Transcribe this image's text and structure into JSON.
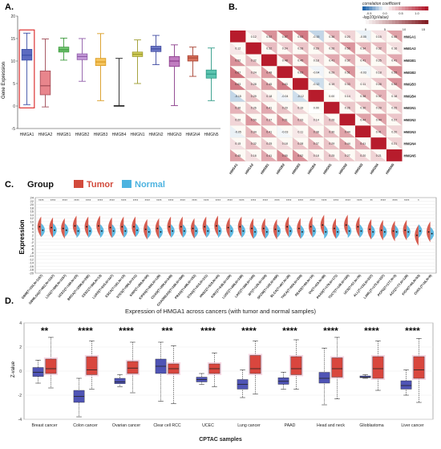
{
  "chart_data": [
    {
      "panel": "A.",
      "type": "box",
      "ylabel": "Gene Expression",
      "ylim": [
        -5,
        20
      ],
      "yticks": [
        -5,
        0,
        5,
        10,
        15,
        20
      ],
      "categories": [
        "HMGA1",
        "HMGA2",
        "HMGB1",
        "HMGB2",
        "HMGB3",
        "HMGB4",
        "HMGN1",
        "HMGN2",
        "HMGN3",
        "HMGN4",
        "HMGN5"
      ],
      "boxes": [
        {
          "min": 0.3,
          "q1": 10.2,
          "median": 11.3,
          "q3": 12.6,
          "max": 16.2,
          "color": "#3b4fa8",
          "fill": "#5c6bc0"
        },
        {
          "min": -0.2,
          "q1": 2.5,
          "median": 4.5,
          "q3": 7.8,
          "max": 14.9,
          "color": "#a04a56",
          "fill": "#e8858c"
        },
        {
          "min": 10.2,
          "q1": 12.0,
          "median": 12.5,
          "q3": 13.1,
          "max": 15.1,
          "color": "#3c9a3c",
          "fill": "#6fc36f"
        },
        {
          "min": 5.5,
          "q1": 10.3,
          "median": 11.0,
          "q3": 11.6,
          "max": 15.0,
          "color": "#8e5aa8",
          "fill": "#c49ad8"
        },
        {
          "min": 1.2,
          "q1": 9.0,
          "median": 9.8,
          "q3": 10.6,
          "max": 16.1,
          "color": "#d99a1e",
          "fill": "#f5c45e"
        },
        {
          "min": 0.0,
          "q1": 0.0,
          "median": 0.0,
          "q3": 0.1,
          "max": 10.6,
          "color": "#222222",
          "fill": "#444444"
        },
        {
          "min": 5.0,
          "q1": 11.0,
          "median": 11.5,
          "q3": 12.0,
          "max": 14.7,
          "color": "#9c9a2c",
          "fill": "#cfcb59"
        },
        {
          "min": 9.2,
          "q1": 12.1,
          "median": 12.7,
          "q3": 13.3,
          "max": 15.7,
          "color": "#3f4aa0",
          "fill": "#6a76c4"
        },
        {
          "min": 0.1,
          "q1": 8.8,
          "median": 10.0,
          "q3": 11.0,
          "max": 13.6,
          "color": "#8a3c8a",
          "fill": "#c07cc0"
        },
        {
          "min": 6.6,
          "q1": 10.0,
          "median": 10.7,
          "q3": 11.2,
          "max": 13.1,
          "color": "#a84232",
          "fill": "#d8735d"
        },
        {
          "min": 1.2,
          "q1": 6.2,
          "median": 7.1,
          "q3": 8.0,
          "max": 12.9,
          "color": "#2e9a86",
          "fill": "#5cc4b0"
        }
      ],
      "highlight": "HMGA1"
    },
    {
      "panel": "B.",
      "type": "heatmap",
      "legend_title_1": "correlation coefficient",
      "legend_ticks_1": [
        "-0.5",
        "0.0",
        "0.5",
        "1.0"
      ],
      "legend_title_2": "-log10(pValue)",
      "legend_ticks_2": [
        "0",
        "5",
        "10",
        "15"
      ],
      "labels": [
        "HMGA1",
        "HMGA2",
        "HMGB1",
        "HMGB2",
        "HMGB3",
        "HMGB4",
        "HMGN1",
        "HMGN2",
        "HMGN3",
        "HMGN4",
        "HMGN5"
      ],
      "row_labels_visible": [
        "HMGA1",
        "HMGA2",
        "HMGB1",
        "HMGB2",
        "HMGB3",
        "HMGB4",
        "HMGN1",
        "HMGN2",
        "HMGN3",
        "HMGN4",
        "HMGN5"
      ],
      "col_labels_visible": [
        "HMGA1",
        "HMGA2",
        "HMGB1",
        "HMGB2",
        "HMGB3",
        "HMGB4",
        "HMGN1",
        "HMGN2",
        "HMGN3",
        "HMGN4",
        "HMGN5"
      ],
      "corr": [
        [
          1,
          0.12,
          0.52,
          0.67,
          0.63,
          -0.15,
          0.36,
          0.2,
          -0.05,
          0.15,
          0.45
        ],
        [
          0.12,
          1,
          0.32,
          0.24,
          0.28,
          0.29,
          0.26,
          0.5,
          0.34,
          0.32,
          0.16
        ],
        [
          0.52,
          0.32,
          1,
          0.48,
          0.45,
          0.18,
          0.41,
          0.37,
          0.41,
          0.25,
          0.41
        ],
        [
          0.67,
          0.24,
          0.48,
          1,
          0.63,
          -0.04,
          0.29,
          0.51,
          -0.03,
          0.18,
          0.55
        ],
        [
          0.63,
          0.28,
          0.45,
          0.63,
          1,
          -0.12,
          0.19,
          0.33,
          0.11,
          0.28,
          0.52
        ],
        [
          -0.15,
          0.29,
          0.18,
          -0.04,
          -0.12,
          1,
          0.0,
          0.14,
          0.38,
          0.37,
          0.18
        ],
        [
          0.36,
          0.26,
          0.41,
          0.29,
          0.19,
          0.0,
          1,
          0.26,
          0.3,
          0.29,
          0.25
        ],
        [
          0.2,
          0.5,
          0.37,
          0.51,
          0.33,
          0.14,
          0.26,
          1,
          0.44,
          0.44,
          0.27
        ],
        [
          -0.05,
          0.34,
          0.41,
          -0.03,
          0.11,
          0.38,
          0.3,
          0.44,
          1,
          0.41,
          0.2
        ],
        [
          0.15,
          0.32,
          0.25,
          0.18,
          0.28,
          0.37,
          0.29,
          0.44,
          0.41,
          1,
          0.21
        ],
        [
          0.45,
          0.16,
          0.41,
          0.55,
          0.52,
          0.18,
          0.25,
          0.27,
          0.2,
          0.21,
          1
        ]
      ]
    },
    {
      "panel": "C.",
      "type": "violin",
      "title": "Group",
      "legend": [
        {
          "name": "Tumor",
          "color": "#d24a3c"
        },
        {
          "name": "Normal",
          "color": "#4db3e0"
        }
      ],
      "ylabel": "Expression",
      "ylim": [
        -20,
        24
      ],
      "yticks": [
        -20,
        -18,
        -16,
        -14,
        -12,
        -10,
        -8,
        -6,
        -4,
        -2,
        0,
        2,
        4,
        6,
        8,
        10,
        12,
        14,
        16,
        18,
        20,
        22,
        24
      ],
      "categories": [
        "GBM(T=153,N=1157)",
        "GBMLGG(T=662,N=1157)",
        "LGG(T=509,N=1157)",
        "UCEC(T=180,N=23)",
        "BRCA(T=1099,N=292)",
        "CESC(T=306,N=13)",
        "LUAD(T=515,N=347)",
        "ESCA(T=181,N=13)",
        "STES(T=596,N=211)",
        "KIRP(T=288,N=60)",
        "KIPAN(T=884,N=129)",
        "COAD(T=290,N=349)",
        "COADREAD(T=380,N=359)",
        "PRAD(T=496,N=152)",
        "STAD(T=415,N=211)",
        "HNSC(T=519,N=44)",
        "KIRC(T=530,N=100)",
        "LUSC(T=498,N=338)",
        "LIHC(T=369,N=160)",
        "WT(T=120,N=168)",
        "SKCM(T=102,N=558)",
        "BLCA(T=407,N=28)",
        "THCA(T=504,N=338)",
        "READ(T=90,N=10)",
        "OV(T=419,N=88)",
        "PAAD(T=179,N=171)",
        "TGCT(T=148,N=165)",
        "UCS(T=57,N=78)",
        "ALL(T=132,N=337)",
        "LAML(T=173,N=337)",
        "PCPG(T=177,N=3)",
        "ACC(T=77,N=128)",
        "KICH(T=66,N=53)",
        "CHOL(T=36,N=9)"
      ],
      "significance": [
        "****",
        "****",
        "****",
        "****",
        "****",
        "****",
        "****",
        "****",
        "****",
        "****",
        "****",
        "****",
        "****",
        "****",
        "****",
        "****",
        "****",
        "****",
        "****",
        "****",
        "****",
        "****",
        "****",
        "****",
        "****",
        "****",
        "****",
        "****",
        "**",
        "****",
        "****",
        "****",
        "*",
        ""
      ],
      "tumor_median": [
        7,
        6.5,
        6,
        7.5,
        7,
        7.5,
        6.5,
        7,
        7,
        5.5,
        6,
        7,
        7,
        6,
        7,
        7.5,
        6.5,
        7,
        6,
        6,
        5.5,
        7,
        6,
        7,
        8,
        6,
        8,
        7,
        5.5,
        5,
        4.5,
        5,
        2,
        4
      ],
      "normal_median": [
        5,
        5,
        5,
        4.5,
        4.5,
        4.5,
        4.5,
        4.5,
        5,
        4,
        4,
        4.5,
        4.5,
        4.5,
        4.5,
        4.5,
        4.5,
        4.5,
        4,
        4,
        4.5,
        4.5,
        4,
        4.5,
        4,
        4,
        4.5,
        4.5,
        4,
        4,
        4,
        4,
        4.5,
        3
      ]
    },
    {
      "panel": "D.",
      "type": "box",
      "title": "Expression of HMGA1 across cancers (with tumor and normal samples)",
      "xlabel": "CPTAC samples",
      "ylabel": "Z-value",
      "ylim": [
        -4,
        4
      ],
      "yticks": [
        -4,
        -2,
        0,
        2,
        4
      ],
      "categories": [
        "Breast cancer",
        "Colon cancer",
        "Ovarian cancer",
        "Clear cell RCC",
        "UCEC",
        "Lung cancer",
        "PAAD",
        "Head and neck",
        "Glioblastoma",
        "Liver cancer"
      ],
      "significance": [
        "**",
        "****",
        "****",
        "***",
        "****",
        "****",
        "****",
        "****",
        "****",
        "****"
      ],
      "series": [
        {
          "name": "Normal",
          "color": "#4f54b5",
          "boxes": [
            {
              "min": -1.0,
              "q1": -0.45,
              "median": -0.1,
              "q3": 0.3,
              "max": 0.9
            },
            {
              "min": -3.8,
              "q1": -2.6,
              "median": -2.1,
              "q3": -1.6,
              "max": -0.6
            },
            {
              "min": -1.3,
              "q1": -1.05,
              "median": -0.9,
              "q3": -0.6,
              "max": -0.3
            },
            {
              "min": -2.5,
              "q1": -0.2,
              "median": 0.4,
              "q3": 1.0,
              "max": 2.4
            },
            {
              "min": -1.1,
              "q1": -0.9,
              "median": -0.7,
              "q3": -0.5,
              "max": -0.2
            },
            {
              "min": -2.2,
              "q1": -1.5,
              "median": -1.1,
              "q3": -0.7,
              "max": 0.1
            },
            {
              "min": -1.5,
              "q1": -1.1,
              "median": -0.85,
              "q3": -0.55,
              "max": -0.1
            },
            {
              "min": -2.8,
              "q1": -1.0,
              "median": -0.6,
              "q3": -0.1,
              "max": 1.9
            },
            {
              "min": -0.6,
              "q1": -0.55,
              "median": -0.5,
              "q3": -0.4,
              "max": -0.3
            },
            {
              "min": -2.0,
              "q1": -1.5,
              "median": -1.2,
              "q3": -0.8,
              "max": 0.1
            }
          ]
        },
        {
          "name": "Tumor",
          "color": "#d9463e",
          "boxes": [
            {
              "min": -1.4,
              "q1": -0.2,
              "median": 0.2,
              "q3": 1.0,
              "max": 2.8
            },
            {
              "min": -1.5,
              "q1": -0.3,
              "median": 0.1,
              "q3": 1.2,
              "max": 2.5
            },
            {
              "min": -1.8,
              "q1": -0.2,
              "median": 0.25,
              "q3": 0.8,
              "max": 2.4
            },
            {
              "min": -2.7,
              "q1": -0.2,
              "median": 0.2,
              "q3": 0.6,
              "max": 2.1
            },
            {
              "min": -1.3,
              "q1": -0.2,
              "median": 0.2,
              "q3": 0.6,
              "max": 1.5
            },
            {
              "min": -1.9,
              "q1": -0.2,
              "median": 0.2,
              "q3": 1.3,
              "max": 2.5
            },
            {
              "min": -1.5,
              "q1": -0.3,
              "median": 0.2,
              "q3": 1.2,
              "max": 2.6
            },
            {
              "min": -2.3,
              "q1": -0.5,
              "median": 0.2,
              "q3": 1.1,
              "max": 2.8
            },
            {
              "min": -1.6,
              "q1": -0.6,
              "median": 0.2,
              "q3": 1.2,
              "max": 2.5
            },
            {
              "min": -2.6,
              "q1": -0.6,
              "median": 0.1,
              "q3": 1.2,
              "max": 2.7
            }
          ]
        }
      ]
    }
  ]
}
